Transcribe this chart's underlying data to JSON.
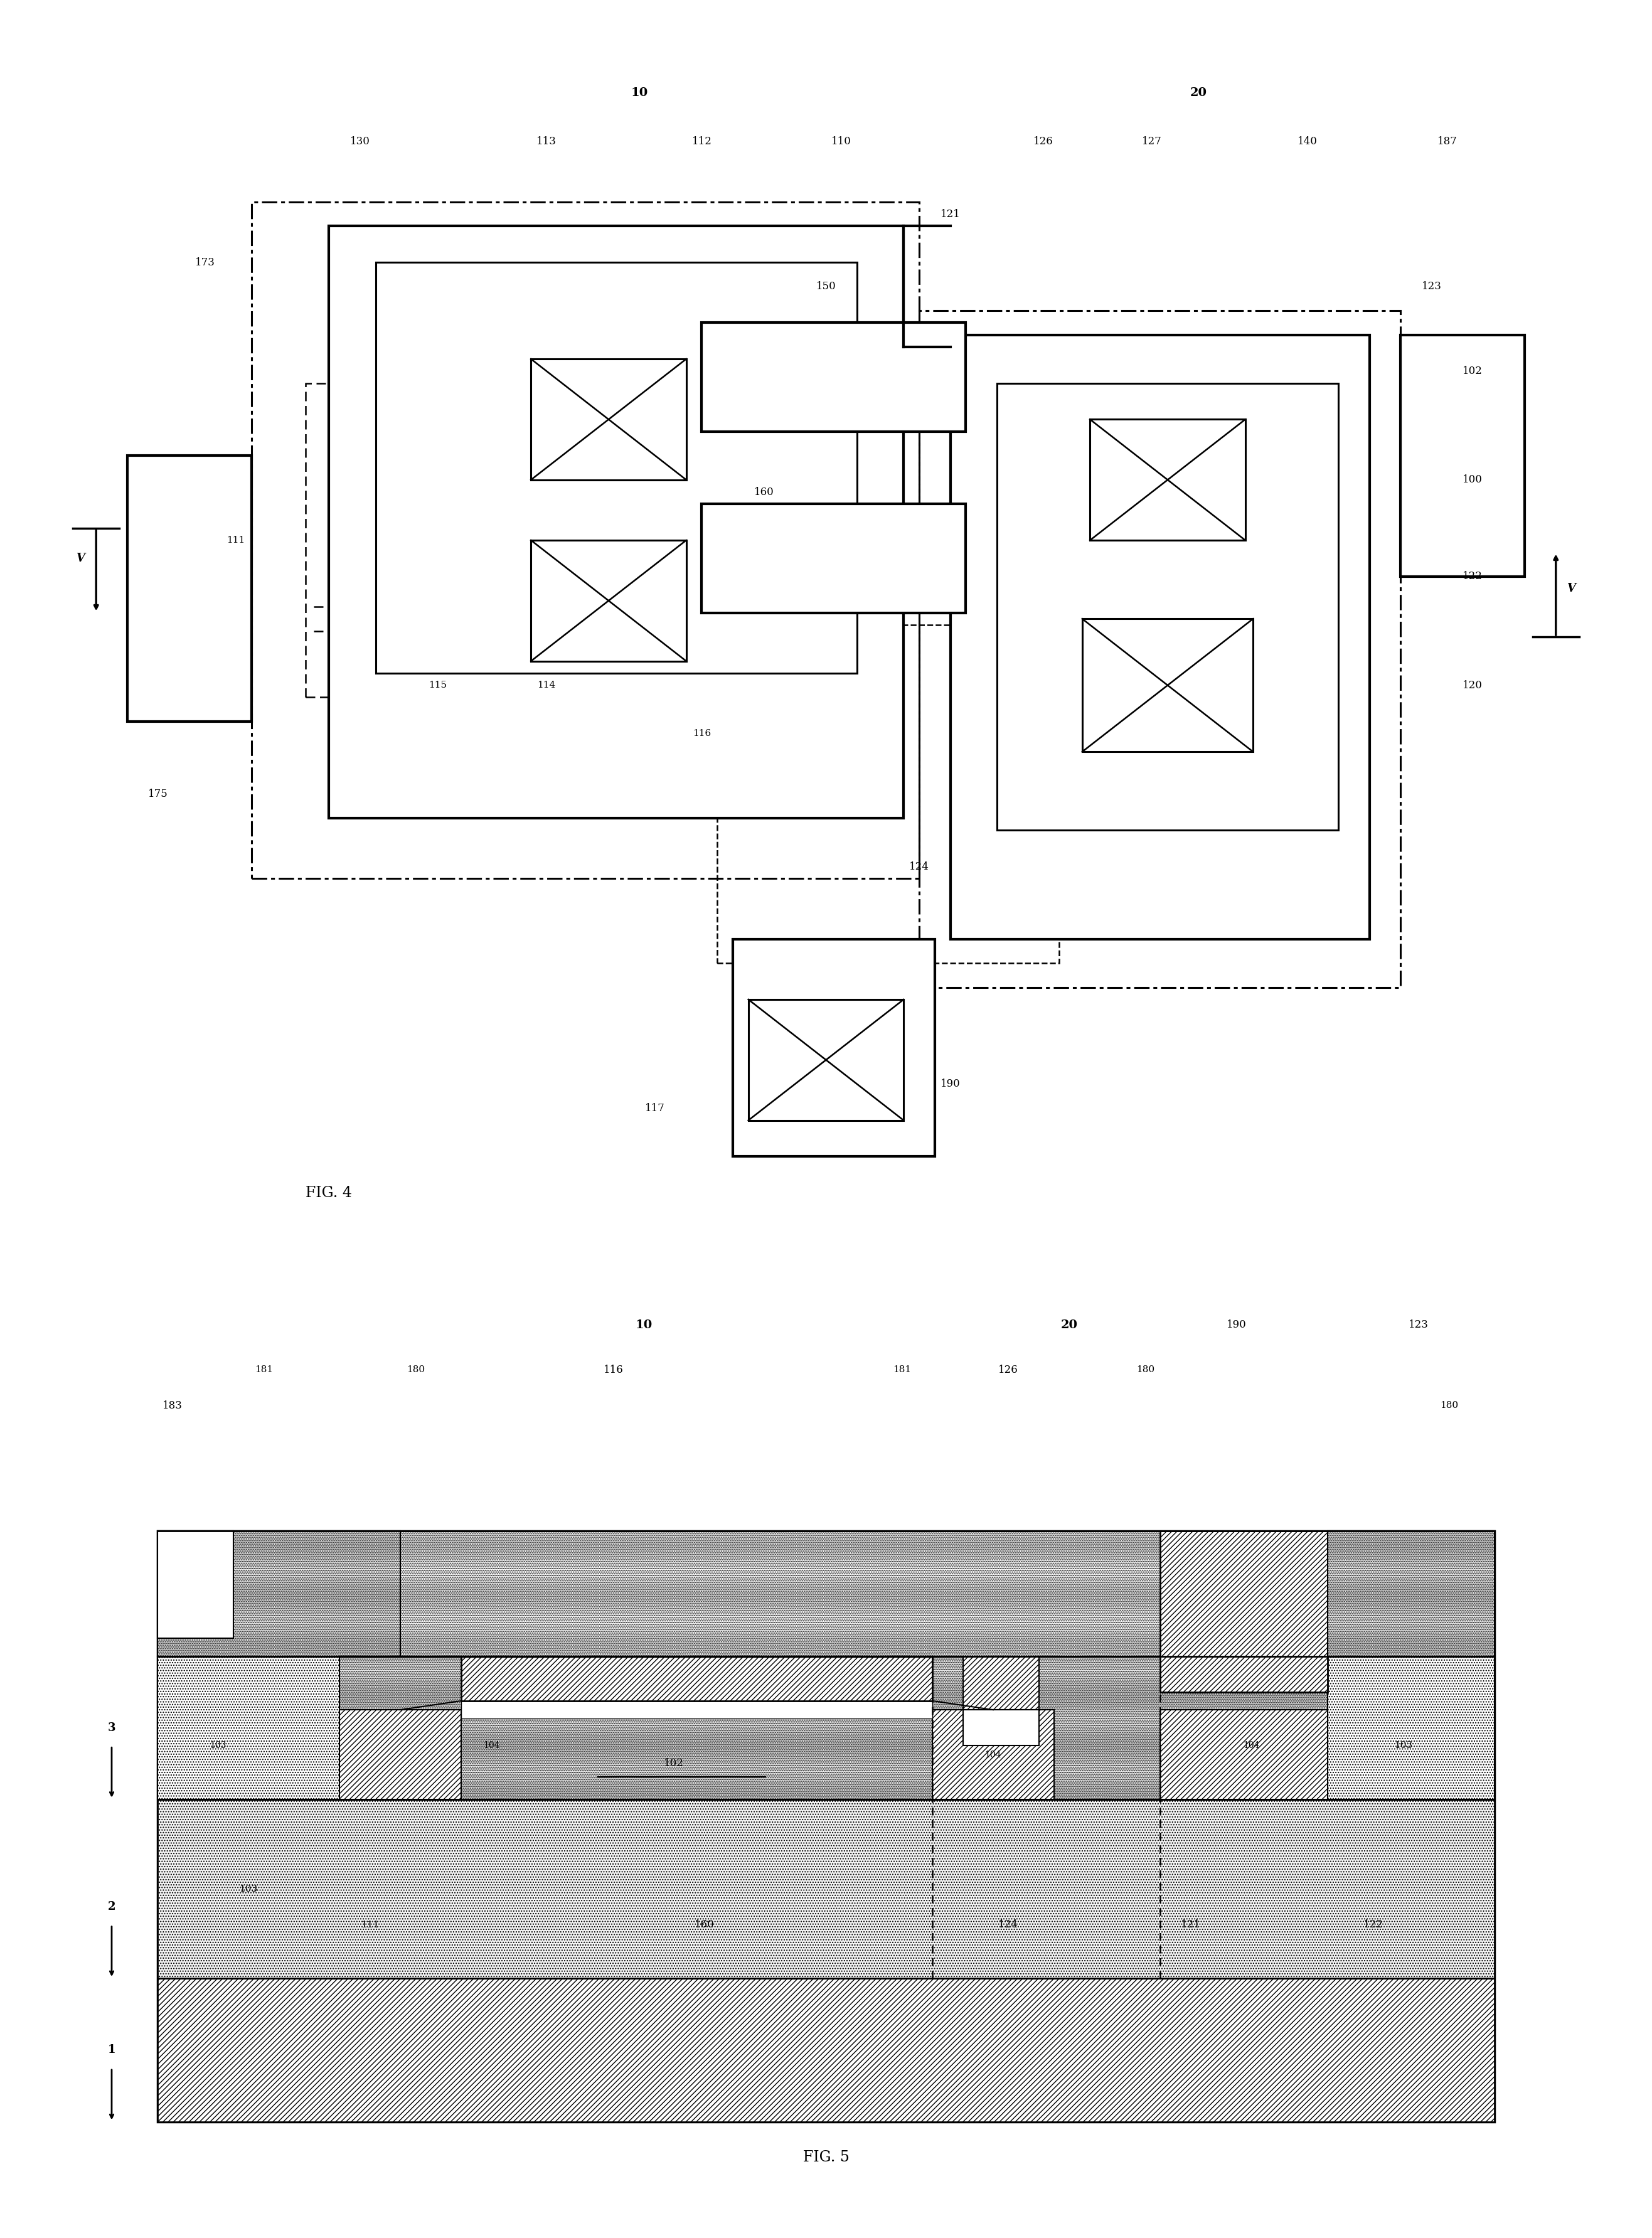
{
  "bg_color": "#ffffff",
  "fig4_label": "FIG. 4",
  "fig5_label": "FIG. 5"
}
